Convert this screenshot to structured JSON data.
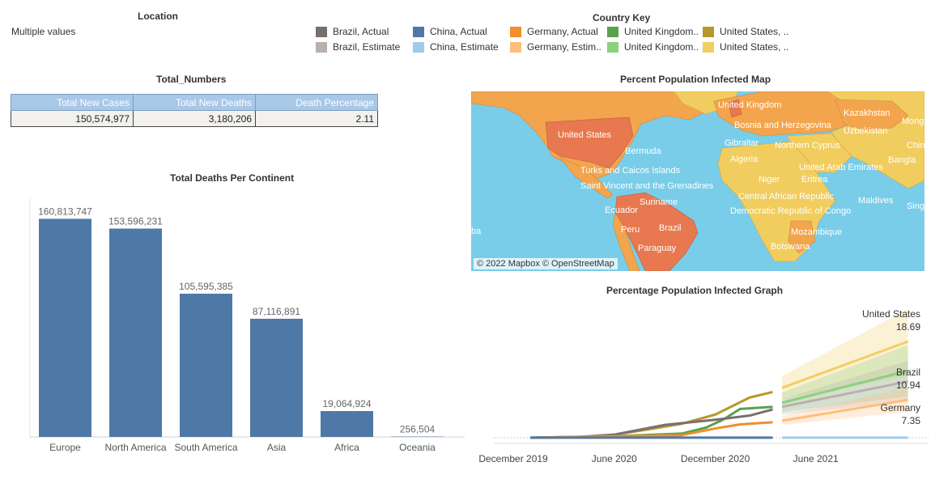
{
  "filter": {
    "title": "Location",
    "value": "Multiple values"
  },
  "legend": {
    "title": "Country Key",
    "items": [
      {
        "label": "Brazil, Actual",
        "color": "#79706e"
      },
      {
        "label": "China, Actual",
        "color": "#4e79a7"
      },
      {
        "label": "Germany, Actual",
        "color": "#f28e2b"
      },
      {
        "label": "United Kingdom..",
        "color": "#59a14f"
      },
      {
        "label": "United States, ..",
        "color": "#b6992d"
      },
      {
        "label": "Brazil, Estimate",
        "color": "#bab0ac"
      },
      {
        "label": "China, Estimate",
        "color": "#a0cbe8"
      },
      {
        "label": "Germany, Estim..",
        "color": "#ffbe7d"
      },
      {
        "label": "United Kingdom..",
        "color": "#8cd17d"
      },
      {
        "label": "United States, ..",
        "color": "#f1ce63"
      }
    ]
  },
  "totals": {
    "title": "Total_Numbers",
    "headers": [
      "Total New Cases",
      "Total New Deaths",
      "Death Percentage"
    ],
    "values": [
      "150,574,977",
      "3,180,206",
      "2.11"
    ]
  },
  "map": {
    "title": "Percent Population Infected Map",
    "attribution": "© 2022 Mapbox © OpenStreetMap",
    "labels": [
      "United Kingdom",
      "Kazakhstan",
      "Mong",
      "United States",
      "Bosnia and Herzegovina",
      "Uzbekistan",
      "Gibraltar",
      "Northern Cyprus",
      "Chin",
      "Bermuda",
      "Algeria",
      "United Arab Emirates",
      "Bangla",
      "Turks and Caicos Islands",
      "Niger",
      "Eritrea",
      "Saint Vincent and the Grenadines",
      "Suriname",
      "Central African Republic",
      "Maldives",
      "Ecuador",
      "Democratic Republic of Congo",
      "Sing",
      "Brazil",
      "Peru",
      "Mozambique",
      "Paraguay",
      "Botswana",
      "ba"
    ]
  },
  "colors": {
    "bar": "#4e79a7",
    "ocean": "#79cde9",
    "land_light": "#f1cd5f",
    "land_mid": "#f3a54d",
    "land_dark": "#e8784f"
  },
  "chart_data": [
    {
      "type": "bar",
      "title": "Total Deaths Per Continent",
      "categories": [
        "Europe",
        "North America",
        "South America",
        "Asia",
        "Africa",
        "Oceania"
      ],
      "values": [
        160813747,
        153596231,
        105595385,
        87116891,
        19064924,
        256504
      ],
      "value_labels": [
        "160,813,747",
        "153,596,231",
        "105,595,385",
        "87,116,891",
        "19,064,924",
        "256,504"
      ],
      "ylim": [
        0,
        170000000
      ]
    },
    {
      "type": "line",
      "title": "Percentage Population Infected Graph",
      "x_ticks": [
        "December 2019",
        "June 2020",
        "December 2020",
        "June 2021"
      ],
      "x_tick_dates": [
        "2019-12-01",
        "2020-06-01",
        "2020-12-01",
        "2021-06-01"
      ],
      "x_range": [
        "2019-10-15",
        "2021-12-15"
      ],
      "ylim": [
        0,
        25
      ],
      "series": [
        {
          "name": "United States",
          "status": "Actual",
          "color": "#b6992d",
          "x": [
            "2020-01-01",
            "2020-04-01",
            "2020-06-01",
            "2020-08-01",
            "2020-10-01",
            "2020-12-01",
            "2021-02-01",
            "2021-03-15"
          ],
          "y": [
            0,
            0.2,
            0.6,
            1.6,
            2.7,
            4.5,
            7.8,
            8.9
          ]
        },
        {
          "name": "United Kingdom",
          "status": "Actual",
          "color": "#59a14f",
          "x": [
            "2020-01-01",
            "2020-06-01",
            "2020-10-01",
            "2020-11-15",
            "2020-12-15",
            "2021-01-15",
            "2021-03-15"
          ],
          "y": [
            0,
            0.3,
            0.8,
            2.0,
            3.5,
            5.6,
            6.0
          ]
        },
        {
          "name": "Brazil",
          "status": "Actual",
          "color": "#79706e",
          "x": [
            "2020-01-01",
            "2020-04-01",
            "2020-06-01",
            "2020-09-01",
            "2020-12-01",
            "2021-02-01",
            "2021-03-15"
          ],
          "y": [
            0,
            0.1,
            0.6,
            2.5,
            3.5,
            4.3,
            5.5
          ]
        },
        {
          "name": "Germany",
          "status": "Actual",
          "color": "#f28e2b",
          "x": [
            "2020-01-01",
            "2020-10-01",
            "2020-12-01",
            "2021-01-15",
            "2021-03-15"
          ],
          "y": [
            0,
            0.5,
            1.8,
            2.6,
            3.0
          ]
        },
        {
          "name": "China",
          "status": "Actual",
          "color": "#4e79a7",
          "x": [
            "2020-01-01",
            "2021-03-15"
          ],
          "y": [
            0.01,
            0.01
          ]
        },
        {
          "name": "United States",
          "status": "Estimate",
          "color": "#f1ce63",
          "x": [
            "2021-04-01",
            "2021-11-15"
          ],
          "y": [
            9.7,
            18.69
          ],
          "band": [
            [
              7.5,
              12.0
            ],
            [
              12.0,
              25.0
            ]
          ]
        },
        {
          "name": "United Kingdom",
          "status": "Estimate",
          "color": "#8cd17d",
          "x": [
            "2021-04-01",
            "2021-11-15"
          ],
          "y": [
            6.8,
            13.0
          ],
          "band": [
            [
              5.0,
              8.8
            ],
            [
              8.0,
              18.0
            ]
          ]
        },
        {
          "name": "Brazil",
          "status": "Estimate",
          "color": "#bab0ac",
          "x": [
            "2021-04-01",
            "2021-11-15"
          ],
          "y": [
            6.0,
            10.94
          ],
          "band": [
            [
              4.5,
              7.5
            ],
            [
              7.0,
              15.0
            ]
          ]
        },
        {
          "name": "Germany",
          "status": "Estimate",
          "color": "#ffbe7d",
          "x": [
            "2021-04-01",
            "2021-11-15"
          ],
          "y": [
            3.3,
            7.35
          ],
          "band": [
            [
              2.5,
              4.2
            ],
            [
              5.0,
              9.8
            ]
          ]
        },
        {
          "name": "China",
          "status": "Estimate",
          "color": "#a0cbe8",
          "x": [
            "2021-04-01",
            "2021-11-15"
          ],
          "y": [
            0.01,
            0.01
          ]
        }
      ],
      "end_labels": [
        {
          "name": "United States",
          "value": "18.69"
        },
        {
          "name": "Brazil",
          "value": "10.94"
        },
        {
          "name": "Germany",
          "value": "7.35"
        }
      ]
    }
  ]
}
